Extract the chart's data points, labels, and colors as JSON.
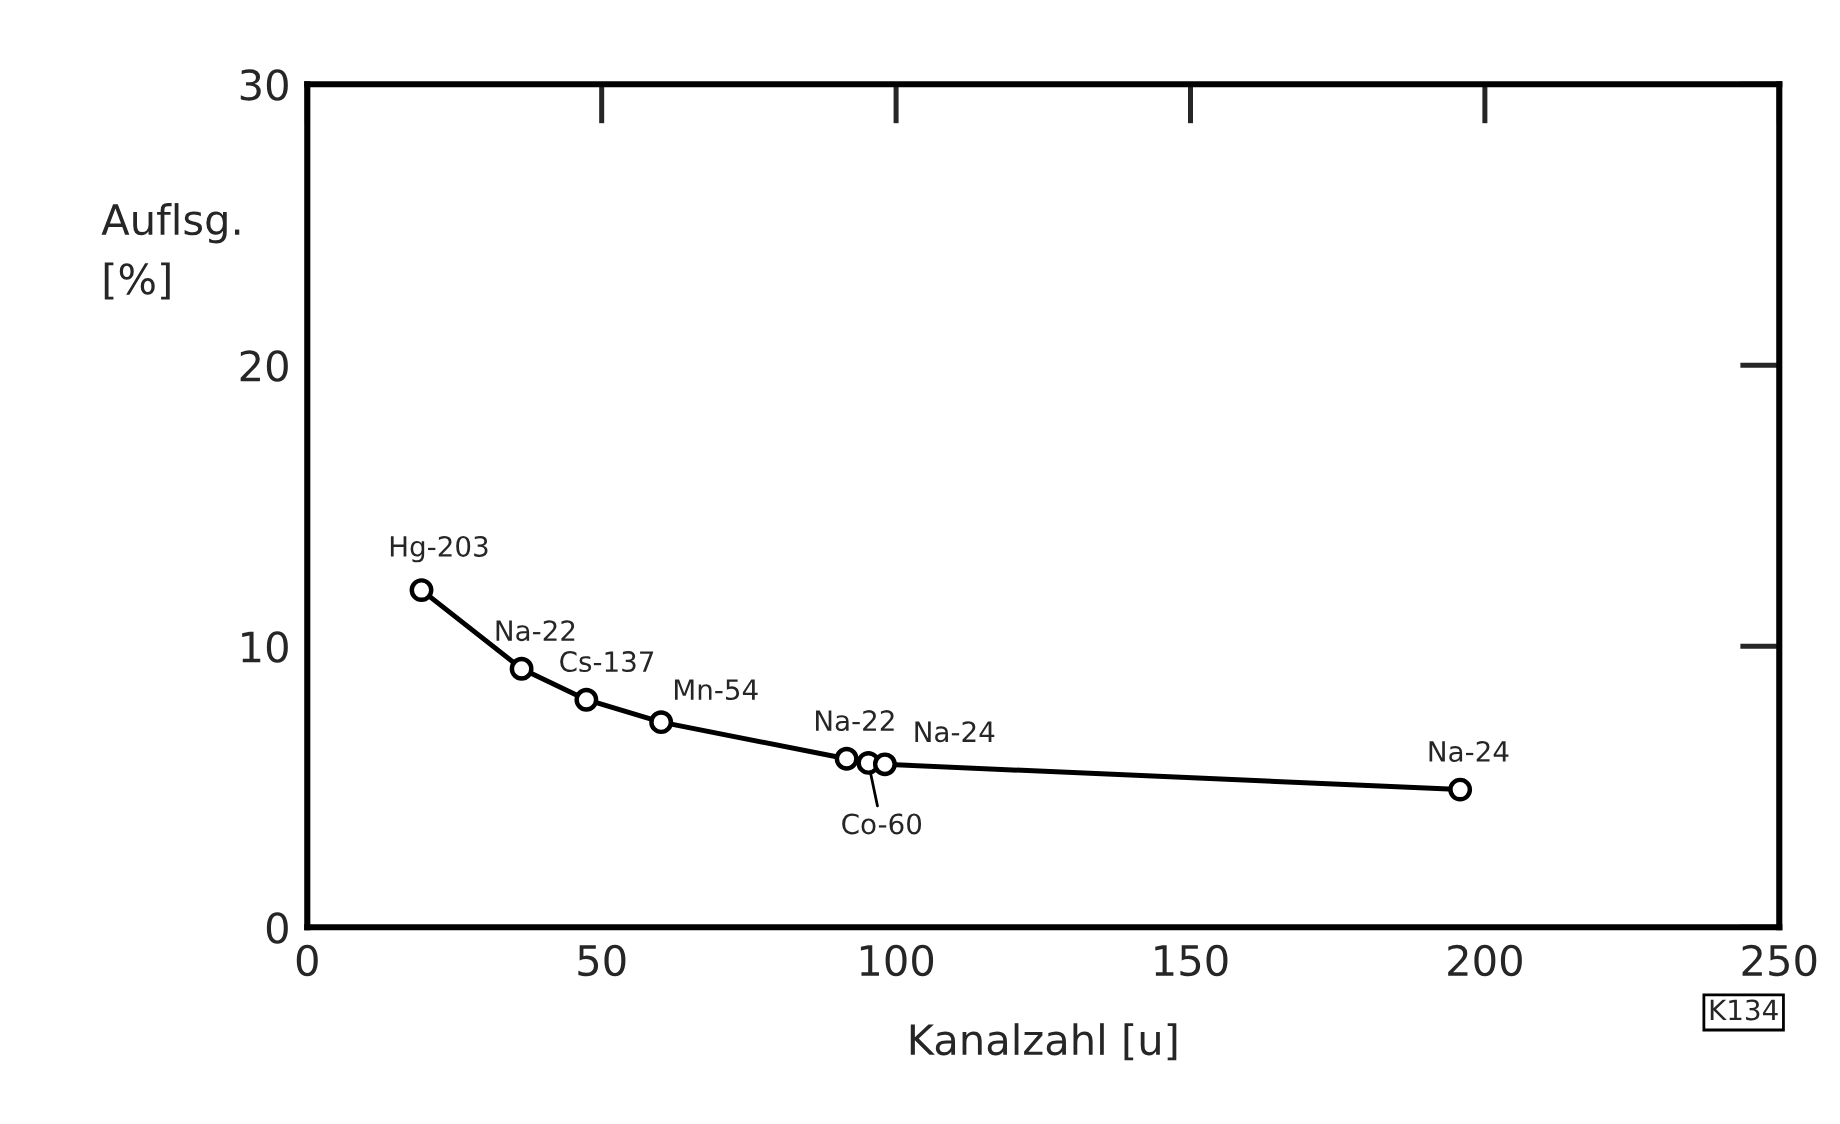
{
  "chart_data": {
    "type": "line",
    "xlabel": "Kanalzahl [u]",
    "ylabel": "Auflsg.\n[%]",
    "x": [
      19.4,
      36.4,
      47.4,
      60.1,
      91.6,
      95.3,
      98.1,
      195.8
    ],
    "series": [
      {
        "color": "#000000",
        "values": [
          12.0,
          9.2,
          8.1,
          7.3,
          6.0,
          5.85,
          5.8,
          4.9
        ]
      }
    ],
    "marker": "circle",
    "line_style": "solid",
    "grid": false,
    "xlim": [
      0,
      250
    ],
    "ylim": [
      0,
      30
    ],
    "xticks": [
      0,
      50,
      100,
      150,
      200,
      250
    ],
    "yticks": [
      0,
      10,
      20,
      30
    ],
    "annotations": [
      {
        "text": "Hg-203",
        "x": 19.4,
        "y": 12.0
      },
      {
        "text": "Na-22",
        "x": 36.4,
        "y": 9.2
      },
      {
        "text": "Cs-137",
        "x": 47.4,
        "y": 8.1
      },
      {
        "text": "Mn-54",
        "x": 60.1,
        "y": 7.3
      },
      {
        "text": "Na-22",
        "x": 91.6,
        "y": 6.0
      },
      {
        "text": "Co-60",
        "x": 95.3,
        "y": 5.85
      },
      {
        "text": "Na-24",
        "x": 98.1,
        "y": 5.8
      },
      {
        "text": "Na-24",
        "x": 195.8,
        "y": 4.9
      },
      "K134"
    ]
  }
}
